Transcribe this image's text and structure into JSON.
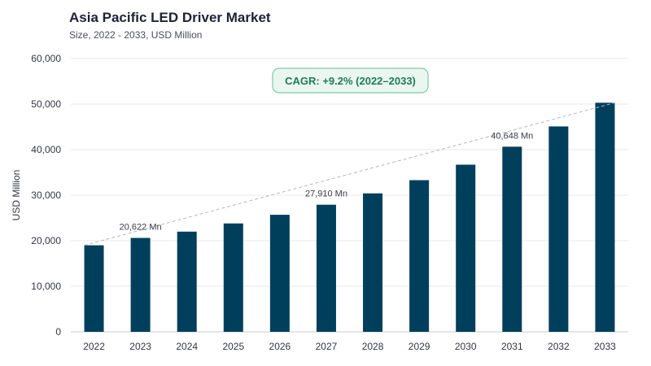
{
  "chart_data": {
    "type": "bar",
    "title": "Asia Pacific LED Driver Market",
    "subtitle": "Size, 2022 - 2033, USD Million",
    "ylabel": "USD Million",
    "xlabel": "",
    "ylim": [
      0,
      60000
    ],
    "yticks": [
      0,
      10000,
      20000,
      30000,
      40000,
      50000,
      60000
    ],
    "ytick_labels": [
      "0",
      "10,000",
      "20,000",
      "30,000",
      "40,000",
      "50,000",
      "60,000"
    ],
    "categories": [
      "2022",
      "2023",
      "2024",
      "2025",
      "2026",
      "2027",
      "2028",
      "2029",
      "2030",
      "2031",
      "2032",
      "2033"
    ],
    "values": [
      19000,
      20622,
      22000,
      23800,
      25700,
      27910,
      30400,
      33300,
      36700,
      40648,
      45100,
      50300
    ],
    "bar_color": "#003f5c",
    "grid": true,
    "data_labels": [
      {
        "category": "2023",
        "text": "20,622 Mn"
      },
      {
        "category": "2027",
        "text": "27,910 Mn"
      },
      {
        "category": "2031",
        "text": "40,648 Mn"
      }
    ],
    "trend_line": {
      "from": "2022",
      "to": "2033",
      "style": "dashed"
    },
    "annotation": {
      "text": "CAGR: +9.2% (2022–2033)",
      "color": "#1f7a5a"
    }
  }
}
